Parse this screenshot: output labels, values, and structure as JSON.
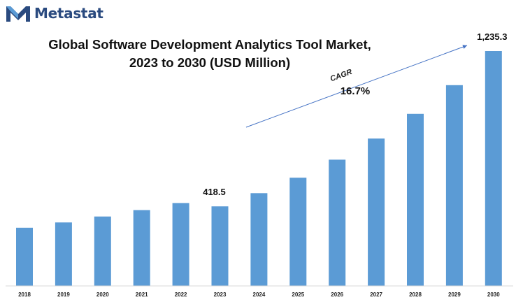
{
  "brand": {
    "name": "Metastat",
    "color": "#2a4a7f"
  },
  "chart_data": {
    "type": "bar",
    "title_line1": "Global Software Development Analytics Tool Market,",
    "title_line2": "2023 to 2030 (USD Million)",
    "categories": [
      "2018",
      "2019",
      "2020",
      "2021",
      "2022",
      "2023",
      "2024",
      "2025",
      "2026",
      "2027",
      "2028",
      "2029",
      "2030"
    ],
    "values": [
      306,
      334,
      365,
      399,
      436,
      418.5,
      488,
      569,
      664,
      775,
      905,
      1056,
      1235.3
    ],
    "data_labels": [
      {
        "index": 5,
        "text": "418.5"
      },
      {
        "index": 12,
        "text": "1,235.3"
      }
    ],
    "annotation": {
      "label": "CAGR",
      "value": "16.7%"
    },
    "bar_color": "#5b9bd5",
    "arrow_color": "#4472c4",
    "ylim": [
      0,
      1235.3
    ],
    "grid": false,
    "legend": "none"
  }
}
